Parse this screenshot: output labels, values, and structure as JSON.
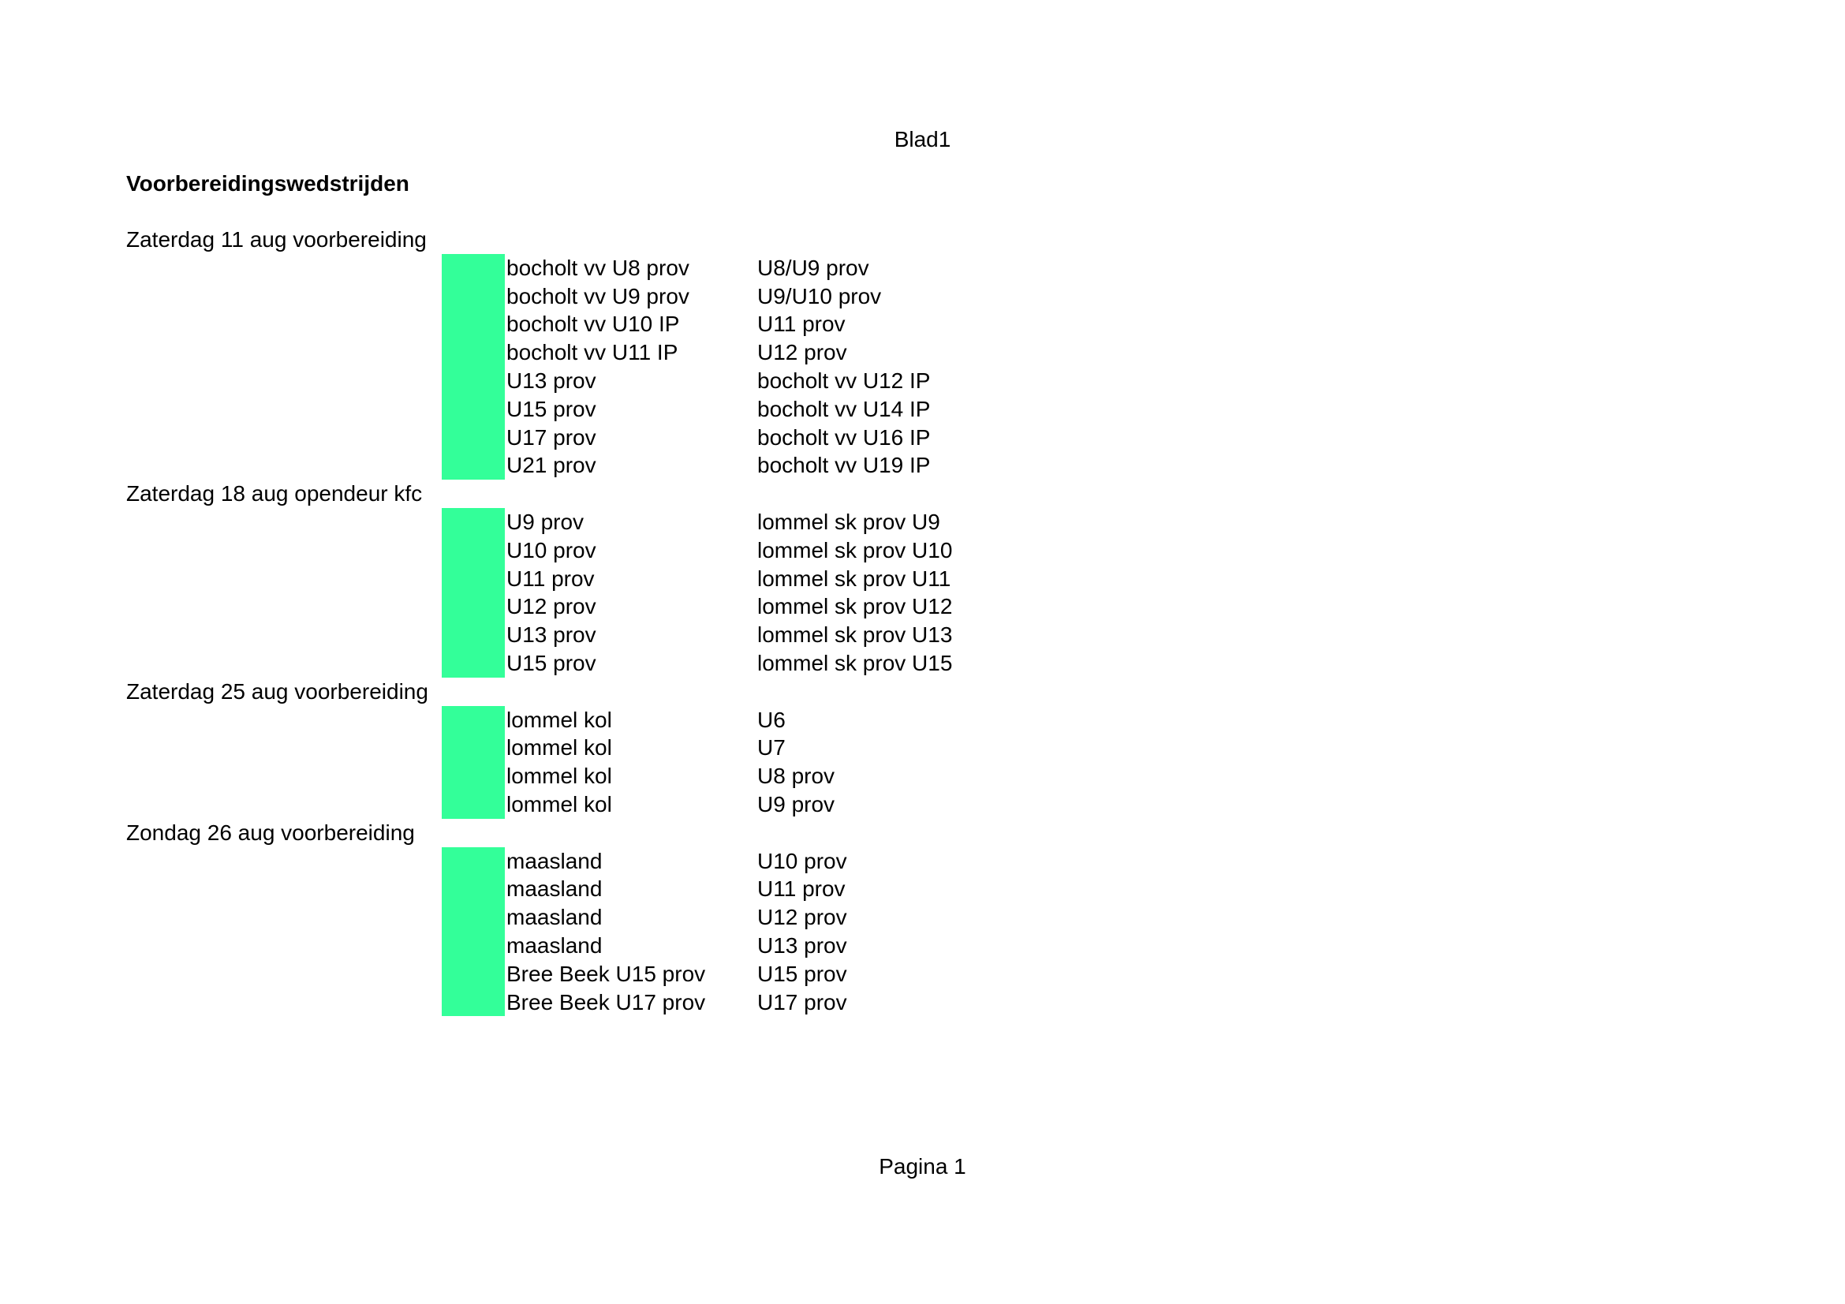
{
  "header": {
    "sheet_name": "Blad1"
  },
  "title": "Voorbereidingswedstrijden",
  "footer": {
    "page_label": "Pagina 1"
  },
  "colors": {
    "highlight": "#33ff99"
  },
  "sections": [
    {
      "heading": "Zaterdag 11 aug voorbereiding",
      "matches": [
        {
          "home": "bocholt vv U8 prov",
          "away": "U8/U9 prov"
        },
        {
          "home": "bocholt vv U9 prov",
          "away": "U9/U10 prov"
        },
        {
          "home": "bocholt vv U10 IP",
          "away": "U11 prov"
        },
        {
          "home": "bocholt vv U11 IP",
          "away": "U12 prov"
        },
        {
          "home": "U13 prov",
          "away": "bocholt vv U12 IP"
        },
        {
          "home": "U15 prov",
          "away": "bocholt vv U14 IP"
        },
        {
          "home": "U17 prov",
          "away": "bocholt vv U16 IP"
        },
        {
          "home": "U21 prov",
          "away": "bocholt vv U19 IP"
        }
      ]
    },
    {
      "heading": "Zaterdag 18 aug opendeur kfc",
      "matches": [
        {
          "home": "U9 prov",
          "away": "lommel sk prov U9"
        },
        {
          "home": "U10 prov",
          "away": "lommel sk prov U10"
        },
        {
          "home": "U11 prov",
          "away": "lommel sk prov U11"
        },
        {
          "home": "U12 prov",
          "away": "lommel sk prov U12"
        },
        {
          "home": "U13 prov",
          "away": "lommel sk prov U13"
        },
        {
          "home": "U15 prov",
          "away": "lommel sk prov U15"
        }
      ]
    },
    {
      "heading": "Zaterdag 25 aug voorbereiding",
      "matches": [
        {
          "home": "lommel kol",
          "away": "U6"
        },
        {
          "home": "lommel kol",
          "away": "U7"
        },
        {
          "home": "lommel kol",
          "away": "U8 prov"
        },
        {
          "home": "lommel kol",
          "away": "U9 prov"
        }
      ]
    },
    {
      "heading": "Zondag 26 aug voorbereiding",
      "matches": [
        {
          "home": "maasland",
          "away": "U10 prov"
        },
        {
          "home": "maasland",
          "away": "U11 prov"
        },
        {
          "home": "maasland",
          "away": "U12 prov"
        },
        {
          "home": "maasland",
          "away": "U13 prov"
        },
        {
          "home": "Bree Beek U15 prov",
          "away": "U15 prov"
        },
        {
          "home": "Bree Beek U17 prov",
          "away": "U17 prov"
        }
      ]
    }
  ]
}
